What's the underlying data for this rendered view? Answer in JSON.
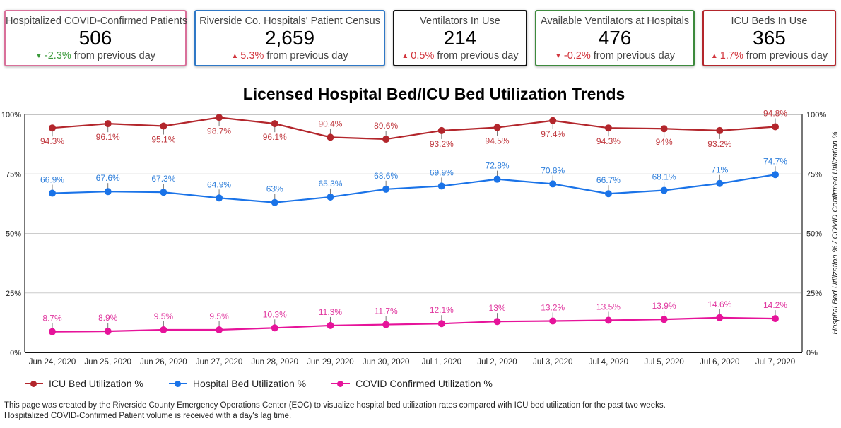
{
  "cards": [
    {
      "title": "Hospitalized COVID-Confirmed Patients",
      "value": "506",
      "delta": "-2.3%",
      "direction": "down",
      "delta_color": "#3a9a3a",
      "suffix": "from previous day",
      "border_color": "#d9709a"
    },
    {
      "title": "Riverside Co. Hospitals' Patient Census",
      "value": "2,659",
      "delta": "5.3%",
      "direction": "up",
      "delta_color": "#d2343c",
      "suffix": "from previous day",
      "border_color": "#2f78c6"
    },
    {
      "title": "Ventilators In Use",
      "value": "214",
      "delta": "0.5%",
      "direction": "up",
      "delta_color": "#d2343c",
      "suffix": "from previous day",
      "border_color": "#111111"
    },
    {
      "title": "Available Ventilators at Hospitals",
      "value": "476",
      "delta": "-0.2%",
      "direction": "down",
      "delta_color": "#d2343c",
      "suffix": "from previous day",
      "border_color": "#3d8a3d"
    },
    {
      "title": "ICU Beds In Use",
      "value": "365",
      "delta": "1.7%",
      "direction": "up",
      "delta_color": "#d2343c",
      "suffix": "from previous day",
      "border_color": "#b3262c"
    }
  ],
  "icons": {
    "up": "up-arrow-icon",
    "down": "down-arrow-icon"
  },
  "chart_data": {
    "type": "line",
    "title": "Licensed Hospital Bed/ICU Bed Utilization Trends",
    "categories": [
      "Jun 24, 2020",
      "Jun 25, 2020",
      "Jun 26, 2020",
      "Jun 27, 2020",
      "Jun 28, 2020",
      "Jun 29, 2020",
      "Jun 30, 2020",
      "Jul 1, 2020",
      "Jul 2, 2020",
      "Jul 3, 2020",
      "Jul 4, 2020",
      "Jul 5, 2020",
      "Jul 6, 2020",
      "Jul 7, 2020"
    ],
    "series": [
      {
        "name": "ICU Bed Utilization %",
        "color": "#b3262c",
        "label_color": "#c0393f",
        "values": [
          94.3,
          96.1,
          95.1,
          98.7,
          96.1,
          90.4,
          89.6,
          93.2,
          94.5,
          97.4,
          94.3,
          94.0,
          93.2,
          94.8
        ],
        "labels": [
          "94.3%",
          "96.1%",
          "95.1%",
          "98.7%",
          "96.1%",
          "90.4%",
          "89.6%",
          "93.2%",
          "94.5%",
          "97.4%",
          "94.3%",
          "94%",
          "93.2%",
          "94.8%"
        ],
        "label_pos": [
          "below",
          "below",
          "below",
          "below",
          "below",
          "above",
          "above",
          "below",
          "below",
          "below",
          "below",
          "below",
          "below",
          "above"
        ]
      },
      {
        "name": "Hospital Bed Utilization %",
        "color": "#1a73e8",
        "label_color": "#2f7fdb",
        "values": [
          66.9,
          67.6,
          67.3,
          64.9,
          63.0,
          65.3,
          68.6,
          69.9,
          72.8,
          70.8,
          66.7,
          68.1,
          71.0,
          74.7
        ],
        "labels": [
          "66.9%",
          "67.6%",
          "67.3%",
          "64.9%",
          "63%",
          "65.3%",
          "68.6%",
          "69.9%",
          "72.8%",
          "70.8%",
          "66.7%",
          "68.1%",
          "71%",
          "74.7%"
        ],
        "label_pos": [
          "above",
          "above",
          "above",
          "above",
          "above",
          "above",
          "above",
          "above",
          "above",
          "above",
          "above",
          "above",
          "above",
          "above"
        ]
      },
      {
        "name": "COVID Confirmed Utilization %",
        "color": "#e6139a",
        "label_color": "#e0379f",
        "values": [
          8.7,
          8.9,
          9.5,
          9.5,
          10.3,
          11.3,
          11.7,
          12.1,
          13.0,
          13.2,
          13.5,
          13.9,
          14.6,
          14.2
        ],
        "labels": [
          "8.7%",
          "8.9%",
          "9.5%",
          "9.5%",
          "10.3%",
          "11.3%",
          "11.7%",
          "12.1%",
          "13%",
          "13.2%",
          "13.5%",
          "13.9%",
          "14.6%",
          "14.2%"
        ],
        "label_pos": [
          "above",
          "above",
          "above",
          "above",
          "above",
          "above",
          "above",
          "above",
          "above",
          "above",
          "above",
          "above",
          "above",
          "above"
        ]
      }
    ],
    "ylim": [
      0,
      100
    ],
    "yticks": [
      0,
      25,
      50,
      75,
      100
    ],
    "ytick_labels": [
      "0%",
      "25%",
      "50%",
      "75%",
      "100%"
    ],
    "ylabel_left": "",
    "ylabel_right": "Hospital Bed Utilization % / COVID Confirmed Utilization %",
    "xlabel": "",
    "grid": true,
    "legend_position": "bottom-left"
  },
  "footer": {
    "line1": "This page was created by the Riverside County Emergency Operations Center (EOC) to visualize hospital bed utilization rates compared with ICU bed utilization for the past two weeks.",
    "line2": "Hospitalized COVID-Confirmed Patient volume is received with a day's lag time."
  }
}
